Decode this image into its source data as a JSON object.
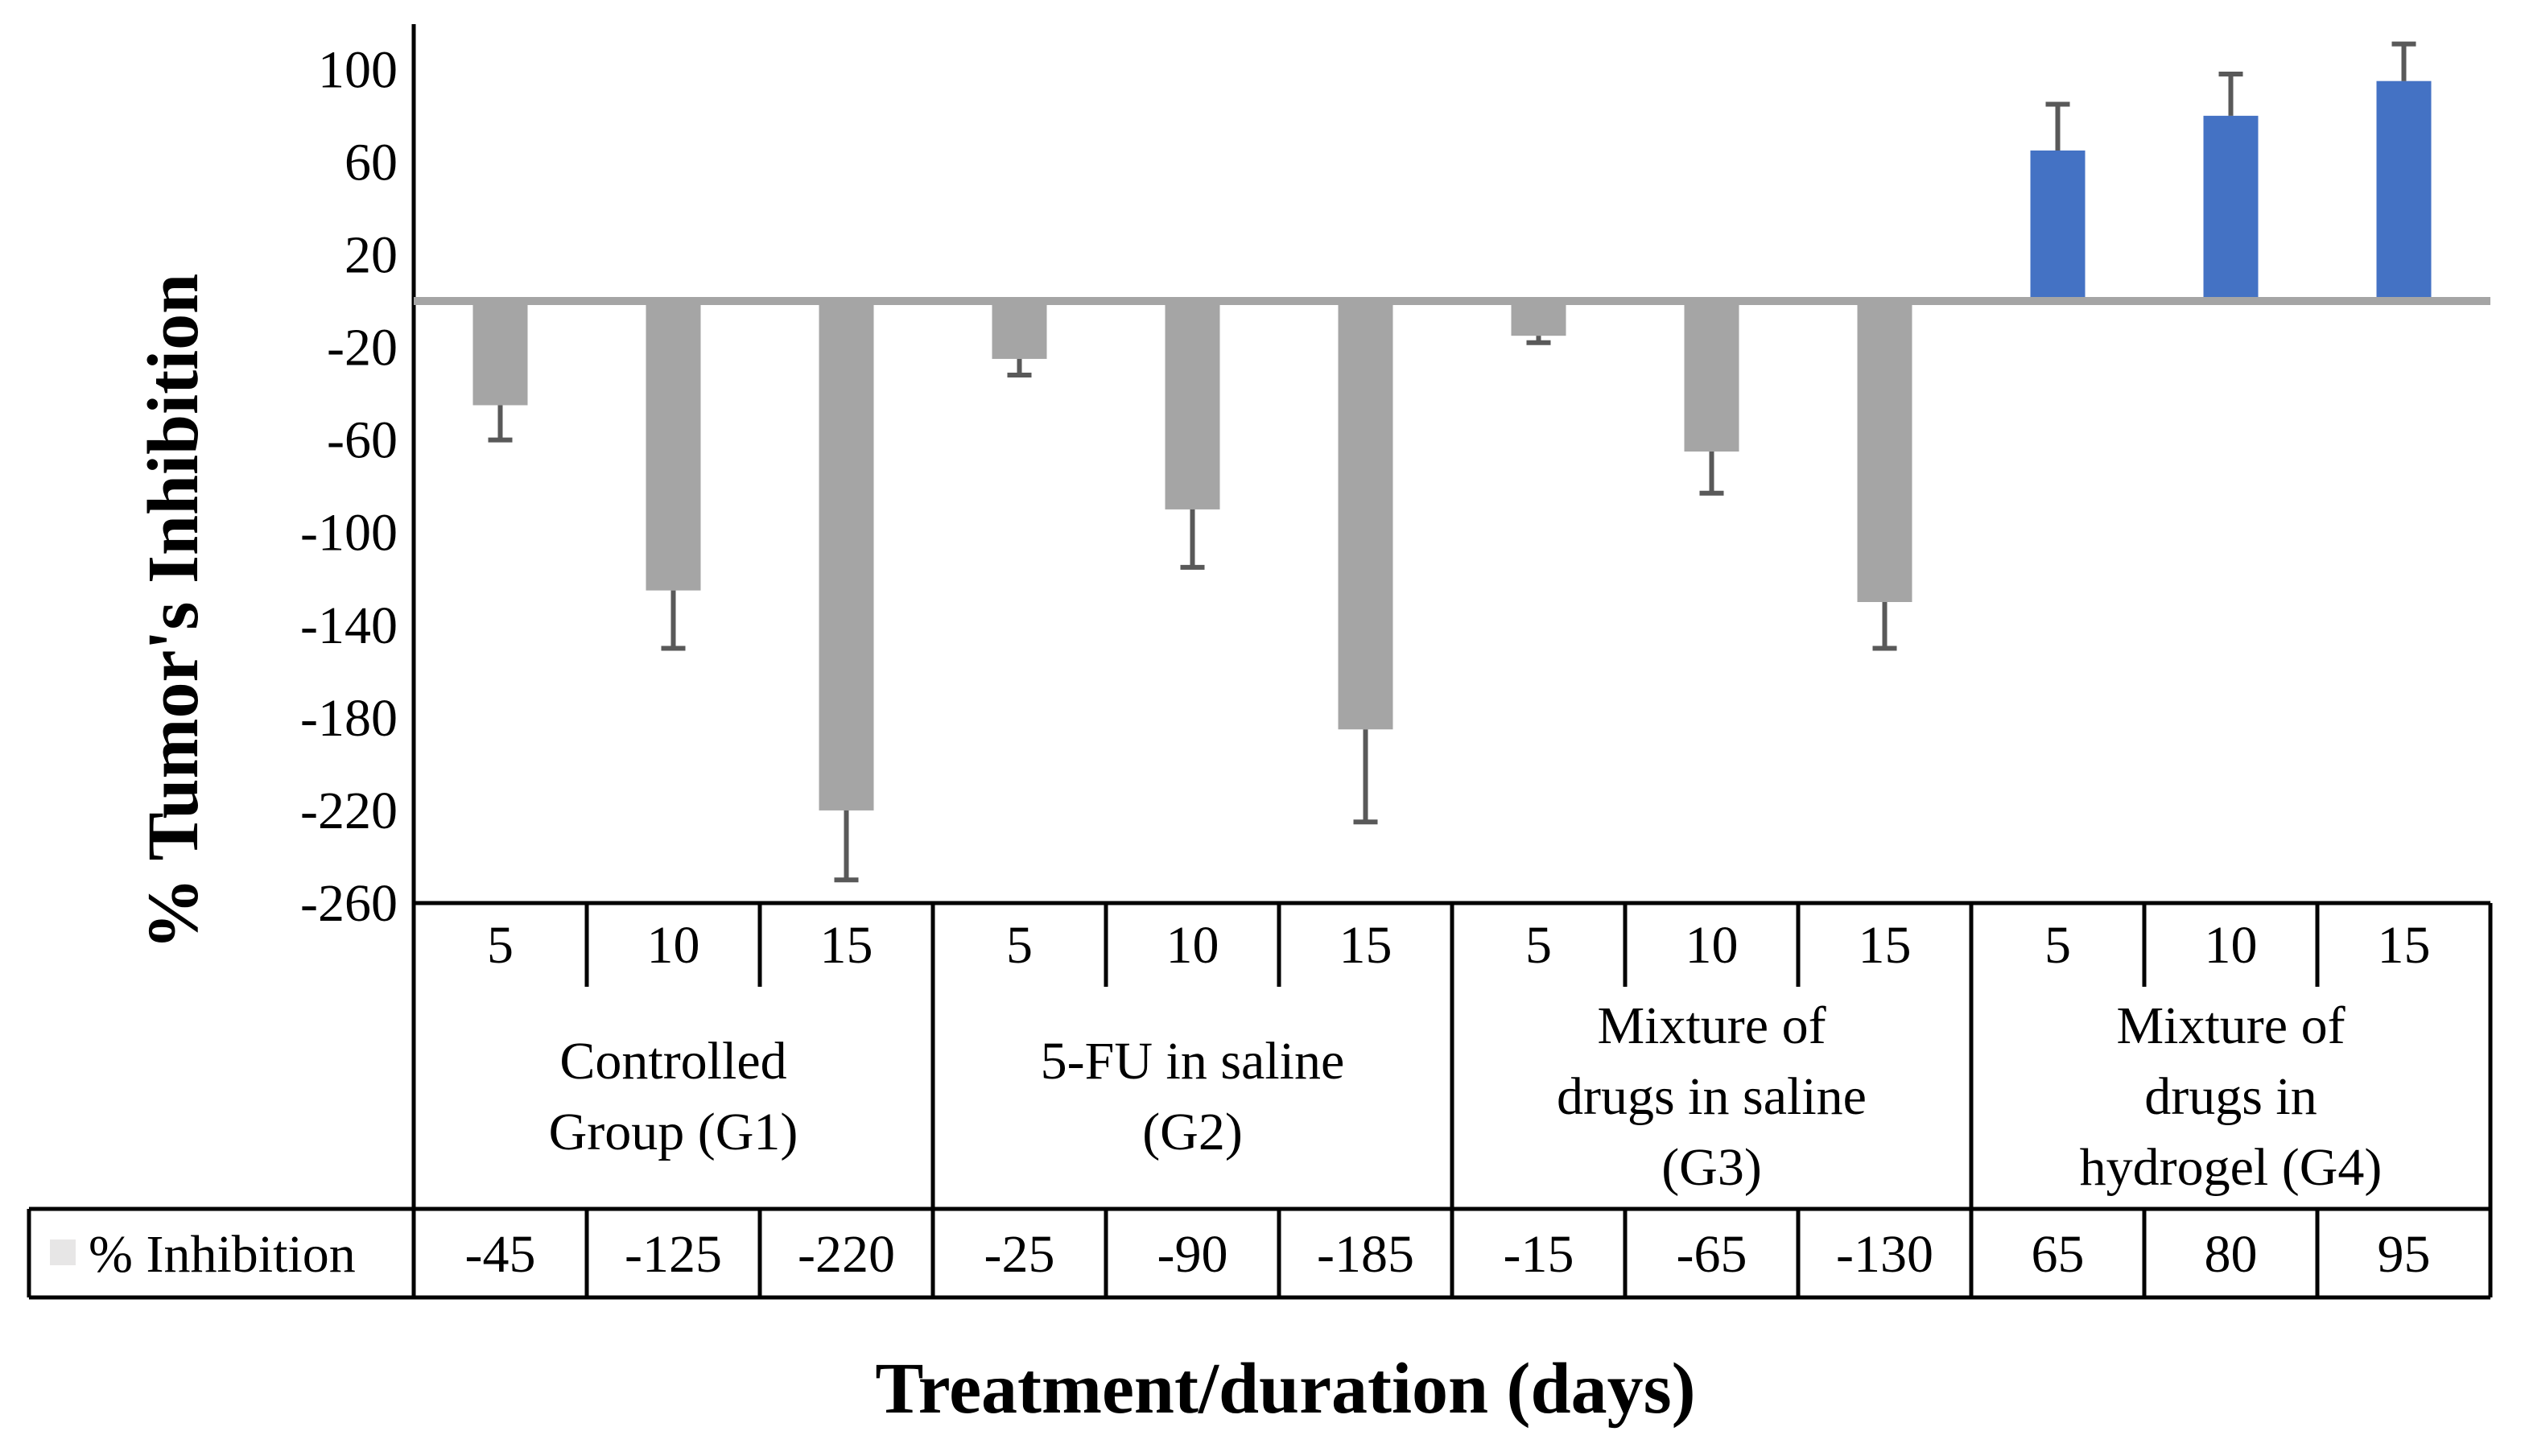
{
  "chart_data": {
    "type": "bar",
    "title": "",
    "xlabel": "Treatment/duration (days)",
    "ylabel": "%  Tumor's Inhibition",
    "ylim": [
      -260,
      100
    ],
    "yticks": [
      100,
      60,
      20,
      -20,
      -60,
      -100,
      -140,
      -180,
      -220,
      -260
    ],
    "grid": false,
    "legend": "in data table, left",
    "groups": [
      {
        "label": "Controlled Group (G1)",
        "lines": [
          "Controlled",
          "Group (G1)"
        ]
      },
      {
        "label": "5-FU in saline (G2)",
        "lines": [
          "5-FU in saline",
          "(G2)"
        ]
      },
      {
        "label": "Mixture of drugs in saline (G3)",
        "lines": [
          "Mixture of",
          "drugs in saline",
          "(G3)"
        ]
      },
      {
        "label": "Mixture of drugs in hydrogel (G4)",
        "lines": [
          "Mixture of",
          "drugs in",
          "hydrogel (G4)"
        ]
      }
    ],
    "categories": [
      "5",
      "10",
      "15",
      "5",
      "10",
      "15",
      "5",
      "10",
      "15",
      "5",
      "10",
      "15"
    ],
    "series": [
      {
        "name": "% Inhibition",
        "values": [
          -45,
          -125,
          -220,
          -25,
          -90,
          -185,
          -15,
          -65,
          -130,
          65,
          80,
          95
        ],
        "error": [
          15,
          25,
          30,
          7,
          25,
          40,
          3,
          18,
          20,
          20,
          18,
          16
        ],
        "value_labels": [
          "-45",
          "-125",
          "-220",
          "-25",
          "-90",
          "-185",
          "-15",
          "-65",
          "-130",
          "65",
          "80",
          "95"
        ]
      }
    ],
    "colors": {
      "negative": "#a5a5a5",
      "positive": "#4472c4",
      "error_bar": "#595959",
      "zero_line": "#a5a5a5",
      "legend_key": "#e7e6e6"
    }
  }
}
